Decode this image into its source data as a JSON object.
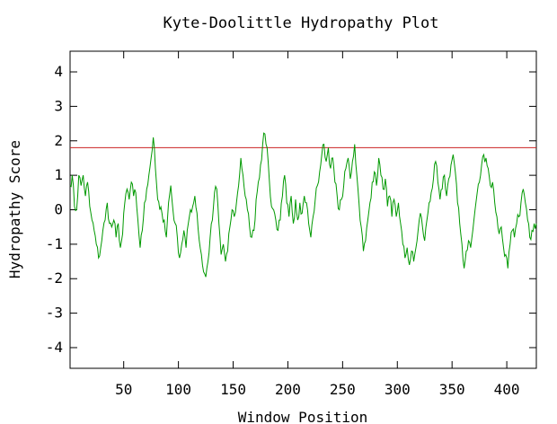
{
  "chart_data": {
    "type": "line",
    "title": "Kyte-Doolittle Hydropathy Plot",
    "xlabel": "Window Position",
    "ylabel": "Hydropathy Score",
    "xlim": [
      1,
      427
    ],
    "ylim": [
      -4.6,
      4.6
    ],
    "xticks": [
      50,
      100,
      150,
      200,
      250,
      300,
      350,
      400
    ],
    "yticks": [
      4,
      3,
      2,
      1,
      0,
      -1,
      -2,
      -3,
      -4
    ],
    "threshold": {
      "value": 1.8,
      "color": "#cc2222"
    },
    "series": [
      {
        "color": "#009900",
        "anchors": [
          [
            1,
            0.7
          ],
          [
            3,
            1.0
          ],
          [
            5,
            0.1
          ],
          [
            7,
            0.0
          ],
          [
            9,
            1.0
          ],
          [
            11,
            0.7
          ],
          [
            13,
            1.0
          ],
          [
            15,
            0.4
          ],
          [
            17,
            0.8
          ],
          [
            19,
            0.1
          ],
          [
            21,
            -0.3
          ],
          [
            23,
            -0.6
          ],
          [
            25,
            -1.0
          ],
          [
            27,
            -1.4
          ],
          [
            29,
            -1.1
          ],
          [
            31,
            -0.6
          ],
          [
            33,
            -0.3
          ],
          [
            35,
            0.2
          ],
          [
            37,
            -0.4
          ],
          [
            39,
            -0.5
          ],
          [
            41,
            -0.3
          ],
          [
            43,
            -0.8
          ],
          [
            45,
            -0.4
          ],
          [
            47,
            -1.1
          ],
          [
            49,
            -0.7
          ],
          [
            51,
            0.2
          ],
          [
            53,
            0.6
          ],
          [
            55,
            0.3
          ],
          [
            57,
            0.8
          ],
          [
            59,
            0.4
          ],
          [
            61,
            0.5
          ],
          [
            63,
            -0.3
          ],
          [
            65,
            -1.1
          ],
          [
            67,
            -0.6
          ],
          [
            69,
            0.2
          ],
          [
            71,
            0.6
          ],
          [
            73,
            1.0
          ],
          [
            75,
            1.5
          ],
          [
            77,
            2.1
          ],
          [
            79,
            1.2
          ],
          [
            81,
            0.3
          ],
          [
            83,
            0.0
          ],
          [
            85,
            -0.1
          ],
          [
            87,
            -0.3
          ],
          [
            89,
            -0.8
          ],
          [
            91,
            0.2
          ],
          [
            93,
            0.7
          ],
          [
            95,
            0.0
          ],
          [
            97,
            -0.4
          ],
          [
            99,
            -0.8
          ],
          [
            101,
            -1.4
          ],
          [
            103,
            -1.0
          ],
          [
            105,
            -0.6
          ],
          [
            107,
            -1.1
          ],
          [
            109,
            -0.4
          ],
          [
            111,
            0.0
          ],
          [
            113,
            0.1
          ],
          [
            115,
            0.4
          ],
          [
            117,
            -0.1
          ],
          [
            119,
            -0.9
          ],
          [
            121,
            -1.3
          ],
          [
            123,
            -1.8
          ],
          [
            125,
            -1.95
          ],
          [
            127,
            -1.5
          ],
          [
            129,
            -0.8
          ],
          [
            131,
            -0.3
          ],
          [
            133,
            0.5
          ],
          [
            135,
            0.6
          ],
          [
            137,
            -0.4
          ],
          [
            139,
            -1.3
          ],
          [
            141,
            -1.0
          ],
          [
            143,
            -1.5
          ],
          [
            145,
            -1.2
          ],
          [
            147,
            -0.5
          ],
          [
            149,
            0.0
          ],
          [
            151,
            -0.2
          ],
          [
            153,
            0.2
          ],
          [
            155,
            0.7
          ],
          [
            157,
            1.5
          ],
          [
            159,
            1.0
          ],
          [
            161,
            0.4
          ],
          [
            163,
            0.0
          ],
          [
            165,
            -0.5
          ],
          [
            167,
            -0.8
          ],
          [
            169,
            -0.6
          ],
          [
            171,
            0.3
          ],
          [
            173,
            0.8
          ],
          [
            175,
            1.3
          ],
          [
            177,
            1.9
          ],
          [
            179,
            2.2
          ],
          [
            181,
            1.8
          ],
          [
            183,
            0.9
          ],
          [
            185,
            0.1
          ],
          [
            187,
            0.0
          ],
          [
            189,
            -0.3
          ],
          [
            191,
            -0.6
          ],
          [
            193,
            -0.3
          ],
          [
            195,
            0.4
          ],
          [
            197,
            1.0
          ],
          [
            199,
            0.2
          ],
          [
            201,
            -0.2
          ],
          [
            203,
            0.4
          ],
          [
            205,
            -0.4
          ],
          [
            207,
            0.3
          ],
          [
            209,
            -0.3
          ],
          [
            211,
            0.2
          ],
          [
            213,
            -0.1
          ],
          [
            215,
            0.4
          ],
          [
            217,
            0.2
          ],
          [
            219,
            -0.4
          ],
          [
            221,
            -0.8
          ],
          [
            223,
            -0.2
          ],
          [
            225,
            0.3
          ],
          [
            227,
            0.7
          ],
          [
            229,
            1.1
          ],
          [
            231,
            1.6
          ],
          [
            233,
            1.9
          ],
          [
            235,
            1.4
          ],
          [
            237,
            1.8
          ],
          [
            239,
            1.2
          ],
          [
            241,
            1.5
          ],
          [
            243,
            0.8
          ],
          [
            245,
            0.4
          ],
          [
            247,
            0.0
          ],
          [
            249,
            0.3
          ],
          [
            251,
            0.7
          ],
          [
            253,
            1.2
          ],
          [
            255,
            1.5
          ],
          [
            257,
            0.9
          ],
          [
            259,
            1.4
          ],
          [
            261,
            1.9
          ],
          [
            263,
            1.0
          ],
          [
            265,
            0.2
          ],
          [
            267,
            -0.5
          ],
          [
            269,
            -1.2
          ],
          [
            271,
            -0.9
          ],
          [
            273,
            -0.3
          ],
          [
            275,
            0.2
          ],
          [
            277,
            0.8
          ],
          [
            279,
            1.1
          ],
          [
            281,
            0.7
          ],
          [
            283,
            1.5
          ],
          [
            285,
            1.0
          ],
          [
            287,
            0.6
          ],
          [
            289,
            0.9
          ],
          [
            291,
            0.1
          ],
          [
            293,
            0.4
          ],
          [
            295,
            -0.2
          ],
          [
            297,
            0.3
          ],
          [
            299,
            -0.2
          ],
          [
            301,
            0.2
          ],
          [
            303,
            -0.4
          ],
          [
            305,
            -1.0
          ],
          [
            307,
            -1.4
          ],
          [
            309,
            -1.1
          ],
          [
            311,
            -1.6
          ],
          [
            313,
            -1.2
          ],
          [
            315,
            -1.5
          ],
          [
            317,
            -1.1
          ],
          [
            319,
            -0.6
          ],
          [
            321,
            -0.1
          ],
          [
            323,
            -0.5
          ],
          [
            325,
            -0.9
          ],
          [
            327,
            -0.3
          ],
          [
            329,
            0.2
          ],
          [
            331,
            0.5
          ],
          [
            333,
            0.9
          ],
          [
            335,
            1.4
          ],
          [
            337,
            0.8
          ],
          [
            339,
            0.3
          ],
          [
            341,
            0.6
          ],
          [
            343,
            1.0
          ],
          [
            345,
            0.4
          ],
          [
            347,
            0.9
          ],
          [
            349,
            1.3
          ],
          [
            351,
            1.6
          ],
          [
            353,
            1.1
          ],
          [
            355,
            0.2
          ],
          [
            357,
            -0.4
          ],
          [
            359,
            -1.0
          ],
          [
            361,
            -1.7
          ],
          [
            363,
            -1.2
          ],
          [
            365,
            -0.9
          ],
          [
            367,
            -1.1
          ],
          [
            369,
            -0.6
          ],
          [
            371,
            0.0
          ],
          [
            373,
            0.5
          ],
          [
            375,
            0.8
          ],
          [
            377,
            1.3
          ],
          [
            379,
            1.6
          ],
          [
            381,
            1.5
          ],
          [
            383,
            1.2
          ],
          [
            385,
            0.7
          ],
          [
            387,
            0.8
          ],
          [
            389,
            0.2
          ],
          [
            391,
            -0.2
          ],
          [
            393,
            -0.7
          ],
          [
            395,
            -0.5
          ],
          [
            397,
            -1.1
          ],
          [
            399,
            -1.3
          ],
          [
            401,
            -1.7
          ],
          [
            403,
            -1.0
          ],
          [
            405,
            -0.6
          ],
          [
            407,
            -0.8
          ],
          [
            409,
            -0.4
          ],
          [
            411,
            -0.2
          ],
          [
            413,
            0.2
          ],
          [
            415,
            0.6
          ],
          [
            417,
            0.2
          ],
          [
            419,
            -0.3
          ],
          [
            421,
            -0.8
          ],
          [
            423,
            -0.6
          ],
          [
            425,
            -0.4
          ],
          [
            427,
            -0.4
          ]
        ]
      }
    ]
  }
}
